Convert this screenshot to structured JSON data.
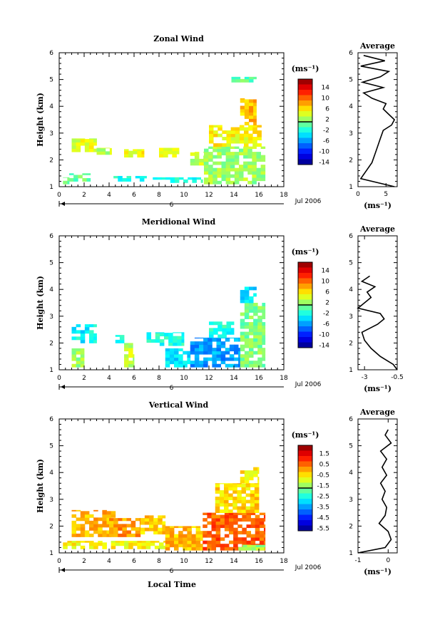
{
  "common": {
    "xlabel": "Local Time",
    "xticks": [
      0,
      2,
      4,
      6,
      8,
      10,
      12,
      14,
      16,
      18
    ],
    "xlim": [
      0,
      18
    ],
    "ylim": [
      1,
      6
    ],
    "yticks": [
      1,
      2,
      3,
      4,
      5,
      6
    ],
    "ylabel": "Height (km)",
    "day_label": "6",
    "date_label": "Jul 2006",
    "unit_label": "(ms⁻¹)",
    "avg_title": "Average"
  },
  "chart_data": [
    {
      "type": "heatmap",
      "title": "Zonal Wind",
      "colorbar_ticks": [
        "14",
        "10",
        "6",
        "2",
        "-2",
        "-6",
        "-10",
        "-14"
      ],
      "colorbar_range": [
        -16,
        16
      ],
      "bins": [
        {
          "x": [
            0.3,
            0.8
          ],
          "y": [
            1.1,
            1.35
          ],
          "v": 0
        },
        {
          "x": [
            0.8,
            2.5
          ],
          "y": [
            1.2,
            1.5
          ],
          "v": -1
        },
        {
          "x": [
            1.0,
            3.0
          ],
          "y": [
            2.3,
            2.8
          ],
          "v": 3
        },
        {
          "x": [
            3.0,
            4.2
          ],
          "y": [
            2.2,
            2.45
          ],
          "v": 2
        },
        {
          "x": [
            4.0,
            7.0
          ],
          "y": [
            1.2,
            1.4
          ],
          "v": -3
        },
        {
          "x": [
            5.2,
            6.8
          ],
          "y": [
            2.1,
            2.4
          ],
          "v": 4
        },
        {
          "x": [
            8.0,
            9.6
          ],
          "y": [
            2.1,
            2.45
          ],
          "v": 3
        },
        {
          "x": [
            7.5,
            11.5
          ],
          "y": [
            1.15,
            1.35
          ],
          "v": -3
        },
        {
          "x": [
            10.5,
            11.6
          ],
          "y": [
            1.8,
            2.3
          ],
          "v": 2
        },
        {
          "x": [
            11.6,
            16.5
          ],
          "y": [
            1.1,
            2.5
          ],
          "v": 1
        },
        {
          "x": [
            12.0,
            16.2
          ],
          "y": [
            2.5,
            3.3
          ],
          "v": 4
        },
        {
          "x": [
            14.5,
            15.8
          ],
          "y": [
            3.3,
            4.3
          ],
          "v": 6
        },
        {
          "x": [
            13.8,
            15.8
          ],
          "y": [
            4.9,
            5.1
          ],
          "v": -1
        }
      ],
      "average": {
        "xlim": [
          0,
          7
        ],
        "xticks": [
          0,
          5
        ],
        "height": [
          1.0,
          1.3,
          1.6,
          1.9,
          2.2,
          2.5,
          2.8,
          3.1,
          3.3,
          3.5,
          3.7,
          3.9,
          4.1,
          4.3,
          4.5,
          4.7,
          4.9,
          5.1,
          5.3,
          5.5,
          5.7,
          5.9
        ],
        "value": [
          6.5,
          0.5,
          1.5,
          2.5,
          3.0,
          3.5,
          4.0,
          4.5,
          6.0,
          6.5,
          5.5,
          4.5,
          5.0,
          2.5,
          1.0,
          4.5,
          0.8,
          4.0,
          5.5,
          0.5,
          4.8,
          1.0
        ]
      }
    },
    {
      "type": "heatmap",
      "title": "Meridional Wind",
      "colorbar_ticks": [
        "14",
        "10",
        "6",
        "2",
        "-2",
        "-6",
        "-10",
        "-14"
      ],
      "colorbar_range": [
        -16,
        16
      ],
      "bins": [
        {
          "x": [
            1.0,
            3.0
          ],
          "y": [
            2.0,
            2.7
          ],
          "v": -4
        },
        {
          "x": [
            1.0,
            2.0
          ],
          "y": [
            1.1,
            1.8
          ],
          "v": 1
        },
        {
          "x": [
            4.5,
            5.2
          ],
          "y": [
            2.0,
            2.3
          ],
          "v": -3
        },
        {
          "x": [
            5.2,
            6.0
          ],
          "y": [
            1.1,
            2.0
          ],
          "v": 2
        },
        {
          "x": [
            7.0,
            10.0
          ],
          "y": [
            1.9,
            2.4
          ],
          "v": -3
        },
        {
          "x": [
            8.5,
            10.5
          ],
          "y": [
            1.1,
            1.8
          ],
          "v": -5
        },
        {
          "x": [
            10.5,
            14.5
          ],
          "y": [
            1.1,
            2.2
          ],
          "v": -7
        },
        {
          "x": [
            12.0,
            14.0
          ],
          "y": [
            2.2,
            2.8
          ],
          "v": -3
        },
        {
          "x": [
            14.5,
            16.5
          ],
          "y": [
            1.1,
            3.5
          ],
          "v": 0
        },
        {
          "x": [
            14.5,
            15.8
          ],
          "y": [
            3.5,
            4.1
          ],
          "v": -5
        }
      ],
      "average": {
        "xlim": [
          -3.5,
          -0.5
        ],
        "xticks": [
          -3.0,
          -0.5
        ],
        "height": [
          1.0,
          1.2,
          1.5,
          1.8,
          2.1,
          2.4,
          2.7,
          2.9,
          3.1,
          3.3,
          3.5,
          3.7,
          3.9,
          4.1,
          4.3,
          4.5
        ],
        "value": [
          -0.5,
          -0.8,
          -1.8,
          -2.5,
          -3.0,
          -3.2,
          -2.0,
          -1.5,
          -1.8,
          -3.5,
          -3.0,
          -2.5,
          -2.8,
          -2.2,
          -3.2,
          -2.6
        ]
      }
    },
    {
      "type": "heatmap",
      "title": "Vertical Wind",
      "colorbar_ticks": [
        "1.5",
        "0.5",
        "-0.5",
        "-1.5",
        "-2.5",
        "-3.5",
        "-4.5",
        "-5.5"
      ],
      "colorbar_range": [
        -6,
        2
      ],
      "bins": [
        {
          "x": [
            0.3,
            8.5
          ],
          "y": [
            1.15,
            1.45
          ],
          "v": -1.0
        },
        {
          "x": [
            1.0,
            4.5
          ],
          "y": [
            1.6,
            2.6
          ],
          "v": -0.4
        },
        {
          "x": [
            4.0,
            6.5
          ],
          "y": [
            1.6,
            2.3
          ],
          "v": -0.2
        },
        {
          "x": [
            6.5,
            8.5
          ],
          "y": [
            1.7,
            2.4
          ],
          "v": -0.6
        },
        {
          "x": [
            8.5,
            11.5
          ],
          "y": [
            1.1,
            2.0
          ],
          "v": -0.5
        },
        {
          "x": [
            11.5,
            16.5
          ],
          "y": [
            1.1,
            2.5
          ],
          "v": 0.3
        },
        {
          "x": [
            12.5,
            16.0
          ],
          "y": [
            2.5,
            3.6
          ],
          "v": -0.7
        },
        {
          "x": [
            14.5,
            16.0
          ],
          "y": [
            3.6,
            4.2
          ],
          "v": -0.9
        },
        {
          "x": [
            14.0,
            16.5
          ],
          "y": [
            1.1,
            1.3
          ],
          "v": -1.8
        }
      ],
      "average": {
        "xlim": [
          -1,
          0.3
        ],
        "xticks": [
          -1,
          0
        ],
        "height": [
          1.0,
          1.2,
          1.5,
          1.8,
          2.1,
          2.4,
          2.7,
          3.0,
          3.3,
          3.6,
          3.9,
          4.2,
          4.5,
          4.8,
          5.1,
          5.4,
          5.6
        ],
        "value": [
          -1.0,
          -0.1,
          0.1,
          0.0,
          -0.3,
          -0.1,
          -0.05,
          -0.2,
          -0.1,
          -0.25,
          -0.05,
          -0.2,
          -0.05,
          -0.25,
          0.1,
          -0.1,
          0.0
        ]
      }
    }
  ]
}
